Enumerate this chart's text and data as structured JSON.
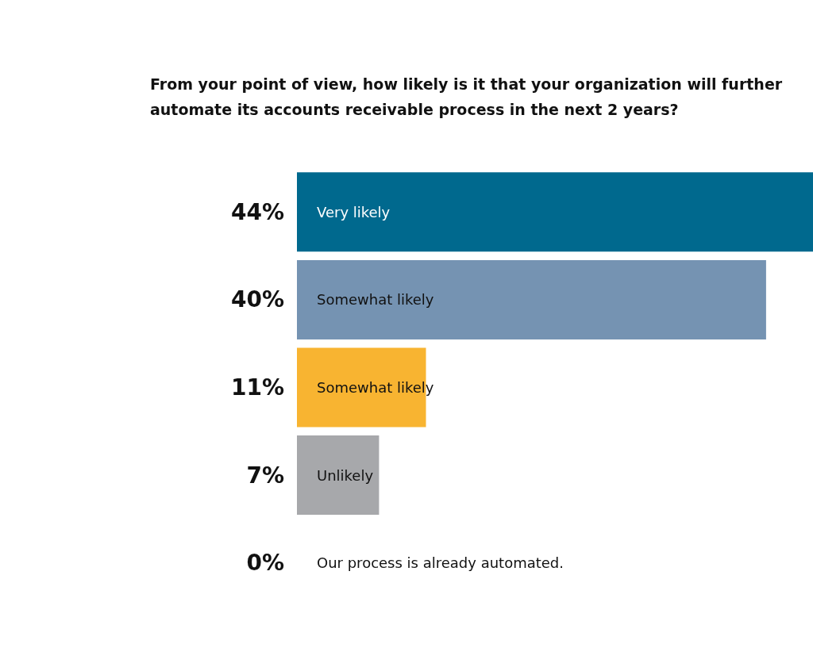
{
  "chart_data": {
    "type": "bar",
    "orientation": "horizontal",
    "title": "From your point of view, how likely is it that your organization will further automate its accounts receivable process in the next 2 years?",
    "categories": [
      "Very likely",
      "Somewhat likely",
      "Somewhat likely",
      "Unlikely",
      "Our process is already automated."
    ],
    "values": [
      44,
      40,
      11,
      7,
      0
    ],
    "colors": [
      "#00698e",
      "#7593b2",
      "#f8b431",
      "#a7a8ab",
      "#111111"
    ],
    "value_labels": [
      "44%",
      "40%",
      "11%",
      "7%",
      "0%"
    ],
    "grid": false
  }
}
